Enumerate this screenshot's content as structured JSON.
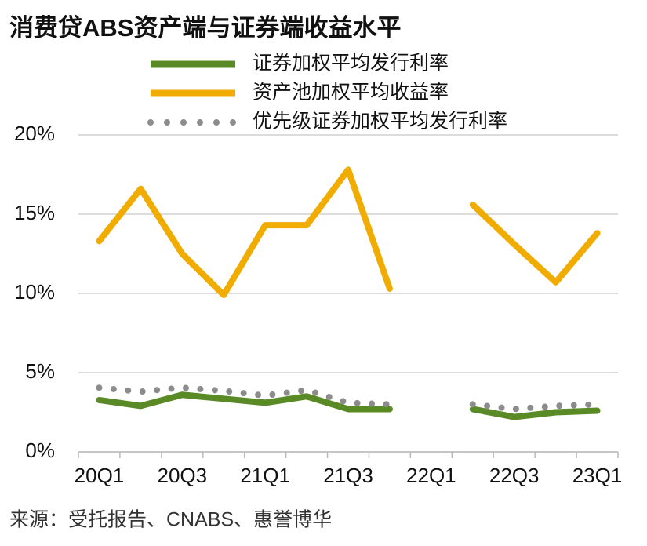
{
  "chart_data": {
    "type": "line",
    "title": "消费贷ABS资产端与证券端收益水平",
    "source": "来源：受托报告、CNABS、惠誉博华",
    "categories": [
      "20Q1",
      null,
      "20Q3",
      null,
      "21Q1",
      null,
      "21Q3",
      null,
      "22Q1",
      null,
      "22Q3",
      null,
      "23Q1"
    ],
    "series": [
      {
        "name": "证券加权平均发行利率",
        "color": "#5a8a26",
        "style": "solid",
        "values": [
          3.27,
          2.9,
          3.6,
          3.35,
          3.1,
          3.5,
          2.7,
          2.7,
          null,
          2.7,
          2.2,
          2.5,
          2.6
        ]
      },
      {
        "name": "资产池加权平均收益率",
        "color": "#f0ac00",
        "style": "solid",
        "values": [
          13.3,
          16.6,
          12.5,
          9.9,
          14.3,
          14.3,
          17.8,
          10.3,
          null,
          15.6,
          13.1,
          10.7,
          13.8
        ]
      },
      {
        "name": "优先级证券加权平均发行利率",
        "color": "#8c8c8c",
        "style": "dotted",
        "values": [
          4.05,
          3.8,
          4.05,
          3.85,
          3.55,
          3.9,
          3.1,
          3.0,
          null,
          3.0,
          2.7,
          2.9,
          3.0
        ]
      }
    ],
    "ylim": [
      0,
      20
    ],
    "yticks": [
      {
        "value": 0,
        "label": "0%"
      },
      {
        "value": 5,
        "label": "5%"
      },
      {
        "value": 10,
        "label": "10%"
      },
      {
        "value": 15,
        "label": "15%"
      },
      {
        "value": 20,
        "label": "20%"
      }
    ],
    "grid": true
  }
}
